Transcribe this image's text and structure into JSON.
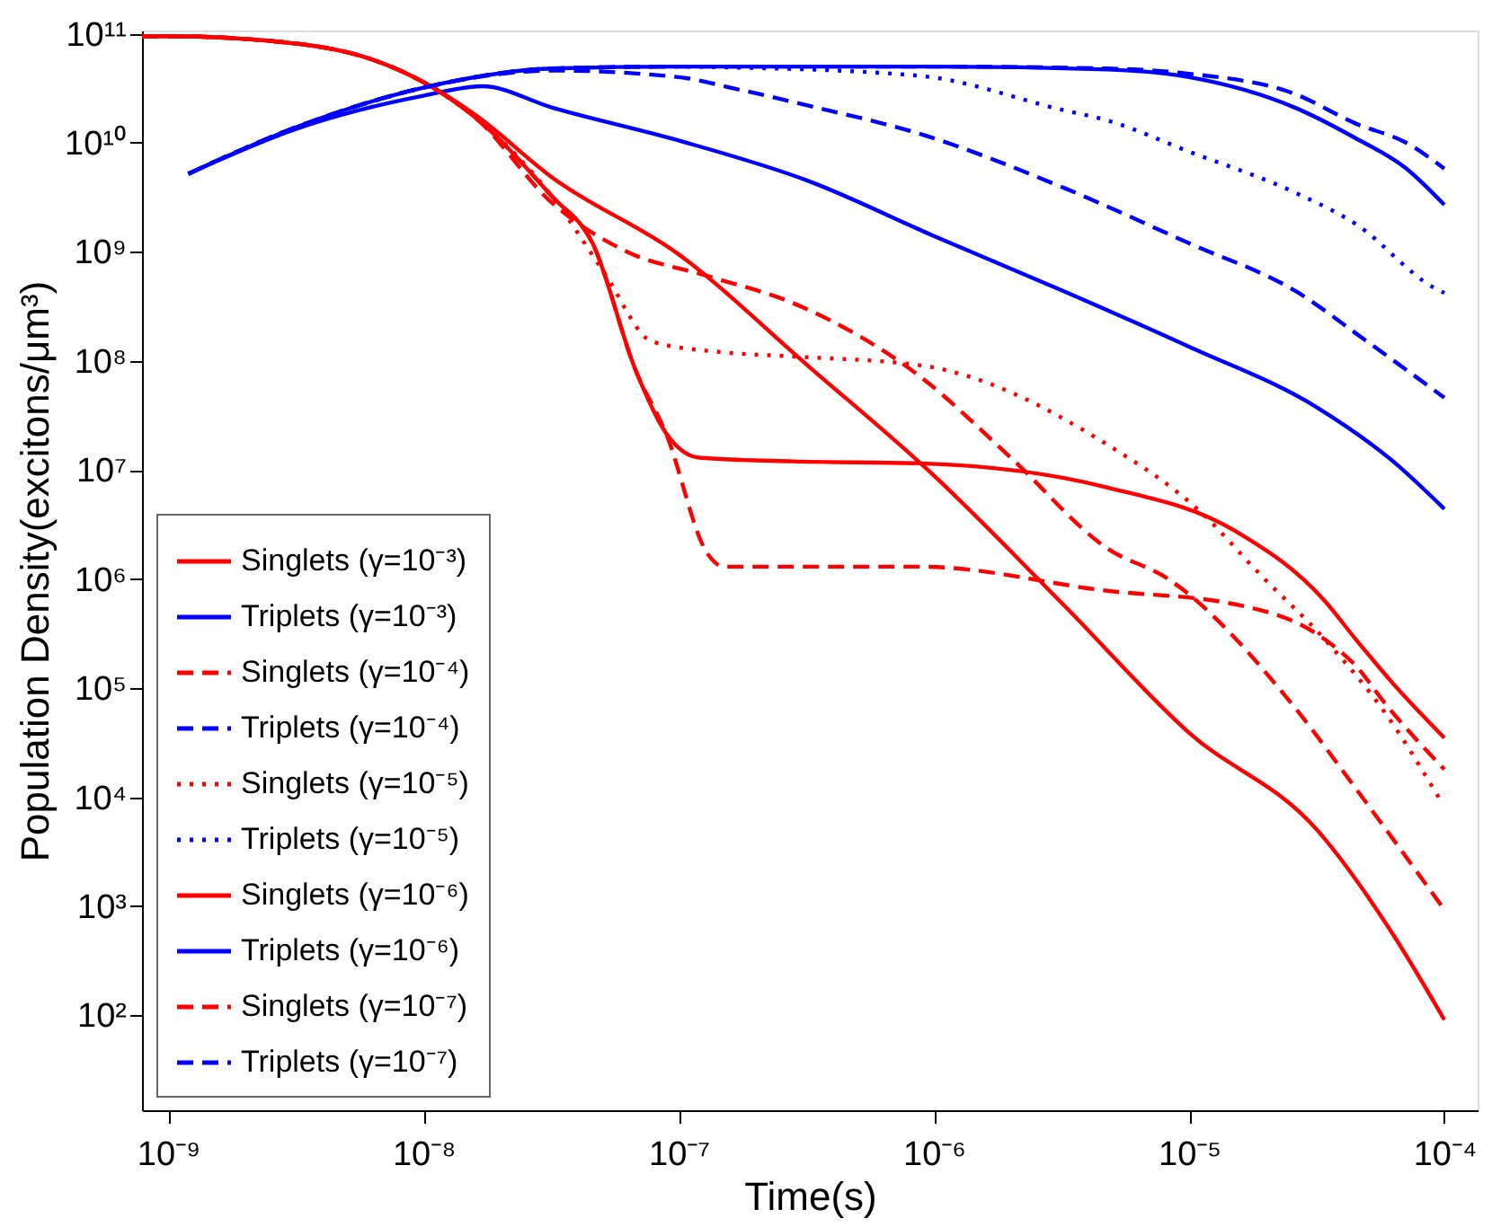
{
  "chart_data": {
    "type": "line",
    "xlabel": "Time(s)",
    "ylabel": "Population Density(excitons/μm³)",
    "log": "xy",
    "grid": false,
    "legend": "bottom left",
    "xlim": [
      7.9e-10,
      0.000135
    ],
    "ylim": [
      13.5,
      107000000000.0
    ],
    "xticks": [
      {
        "value": 1e-09,
        "label": "10⁻⁹"
      },
      {
        "value": 1e-08,
        "label": "10⁻⁸"
      },
      {
        "value": 1e-07,
        "label": "10⁻⁷"
      },
      {
        "value": 1e-06,
        "label": "10⁻⁶"
      },
      {
        "value": 1e-05,
        "label": "10⁻⁵"
      },
      {
        "value": 0.0001,
        "label": "10⁻⁴"
      }
    ],
    "yticks": [
      {
        "value": 100,
        "label": "10²"
      },
      {
        "value": 1000,
        "label": "10³"
      },
      {
        "value": 10000,
        "label": "10⁴"
      },
      {
        "value": 100000,
        "label": "10⁵"
      },
      {
        "value": 1000000,
        "label": "10⁶"
      },
      {
        "value": 10000000.0,
        "label": "10⁷"
      },
      {
        "value": 100000000.0,
        "label": "10⁸"
      },
      {
        "value": 1000000000.0,
        "label": "10⁹"
      },
      {
        "value": 10000000000.0,
        "label": "10¹⁰"
      },
      {
        "value": 100000000000.0,
        "label": "10¹¹"
      }
    ],
    "series": [
      {
        "name": "Singlets (γ=10⁻³)",
        "color": "#ff0000",
        "line_style": "solid",
        "x": [
          7.9e-10,
          1e-09,
          3.2e-09,
          6.3e-09,
          1e-08,
          1.6e-08,
          3.2e-08,
          1e-07,
          3.2e-07,
          1e-06,
          3.2e-06,
          1e-05,
          3.2e-05,
          6.3e-05,
          0.0001
        ],
        "values": [
          95000000000.0,
          95000000000.0,
          81000000000.0,
          58000000000.0,
          36000000000.0,
          18000000000.0,
          4800000000.0,
          950000000.0,
          91000000.0,
          8900000.0,
          590000.0,
          39000.0,
          4900,
          550,
          91
        ]
      },
      {
        "name": "Triplets (γ=10⁻³)",
        "color": "#0000ff",
        "line_style": "solid",
        "x": [
          1.2e-09,
          3.2e-09,
          1e-08,
          1.7e-08,
          3.2e-08,
          1e-07,
          3.2e-07,
          1e-06,
          3.2e-06,
          1e-05,
          3.2e-05,
          6.3e-05,
          0.0001
        ],
        "values": [
          5200000000.0,
          13500000000.0,
          27000000000.0,
          33000000000.0,
          21000000000.0,
          10500000000.0,
          4500000000.0,
          1400000000.0,
          440000000.0,
          135000000.0,
          37000000.0,
          12000000.0,
          4400000.0
        ]
      },
      {
        "name": "Singlets (γ=10⁻⁴)",
        "color": "#ff0000",
        "line_style": "dashed",
        "x": [
          7.9e-10,
          1e-09,
          3.2e-09,
          6.3e-09,
          1e-08,
          1.6e-08,
          3.2e-08,
          6.3e-08,
          1.3e-07,
          2.8e-07,
          8.9e-07,
          2e-06,
          4.8e-06,
          8.3e-06,
          2.6e-05,
          4.5e-05,
          0.0001
        ],
        "values": [
          95000000000.0,
          95000000000.0,
          81000000000.0,
          58000000000.0,
          36000000000.0,
          17000000000.0,
          2800000000.0,
          1000000000.0,
          600000000.0,
          340000000.0,
          71000000.0,
          13000000.0,
          1900000.0,
          1000000.0,
          66000.0,
          12000.0,
          930
        ]
      },
      {
        "name": "Triplets (γ=10⁻⁴)",
        "color": "#0000ff",
        "line_style": "dashed",
        "x": [
          1.2e-09,
          3.2e-09,
          1e-08,
          3.2e-08,
          1e-07,
          1.7e-07,
          3.2e-07,
          8.9e-07,
          3.2e-06,
          1e-05,
          2.6e-05,
          5e-05,
          0.0001
        ],
        "values": [
          5200000000.0,
          14000000000.0,
          32000000000.0,
          46000000000.0,
          40000000000.0,
          31000000000.0,
          22000000000.0,
          12000000000.0,
          3900000000.0,
          1200000000.0,
          440000000.0,
          150000000.0,
          46000000.0
        ]
      },
      {
        "name": "Singlets (γ=10⁻⁵)",
        "color": "#ff0000",
        "line_style": "dotted",
        "x": [
          7.9e-10,
          1e-09,
          3.2e-09,
          6.3e-09,
          1e-08,
          1.6e-08,
          3.2e-08,
          5.1e-08,
          7.9e-08,
          1.5e-07,
          2.8e-07,
          8.9e-07,
          4.8e-06,
          1.1e-05,
          1.9e-05,
          3.4e-05,
          5.9e-05,
          9.5e-05
        ],
        "values": [
          95000000000.0,
          95000000000.0,
          81000000000.0,
          58000000000.0,
          36000000000.0,
          17000000000.0,
          3200000000.0,
          650000000.0,
          150000000.0,
          120000000.0,
          110000000.0,
          91000000.0,
          17000000.0,
          4200000.0,
          1100000.0,
          280000.0,
          58000.0,
          10000.0
        ]
      },
      {
        "name": "Triplets (γ=10⁻⁵)",
        "color": "#0000ff",
        "line_style": "dotted",
        "x": [
          1.2e-09,
          3.2e-09,
          1e-08,
          3.2e-08,
          1e-07,
          1.7e-07,
          8.9e-07,
          3.2e-06,
          4.8e-06,
          1e-05,
          2.6e-05,
          4.5e-05,
          9.1e-05,
          0.0001
        ],
        "values": [
          5200000000.0,
          14000000000.0,
          32000000000.0,
          48000000000.0,
          50000000000.0,
          49000000000.0,
          41000000000.0,
          20000000000.0,
          16000000000.0,
          8300000000.0,
          3500000000.0,
          1800000000.0,
          470000000.0,
          420000000.0
        ]
      },
      {
        "name": "Singlets (γ=10⁻⁶)",
        "color": "#ff0000",
        "line_style": "solid",
        "x": [
          7.9e-10,
          1e-09,
          3.2e-09,
          6.3e-09,
          1e-08,
          1.6e-08,
          3.2e-08,
          4.6e-08,
          6.8e-08,
          8.9e-08,
          1.2e-07,
          2.8e-07,
          8.9e-07,
          4.8e-06,
          1.5e-05,
          3.4e-05,
          4.5e-05,
          6.3e-05,
          0.0001
        ],
        "values": [
          95000000000.0,
          95000000000.0,
          81000000000.0,
          58000000000.0,
          36000000000.0,
          17000000000.0,
          3200000000.0,
          1200000000.0,
          81000000.0,
          22000000.0,
          13000000.0,
          12000000.0,
          11500000.0,
          6900000.0,
          2800000.0,
          630000.0,
          280000.0,
          110000.0,
          35000.0
        ]
      },
      {
        "name": "Triplets (γ=10⁻⁶)",
        "color": "#0000ff",
        "line_style": "solid",
        "x": [
          1.2e-09,
          3.2e-09,
          1e-08,
          3.2e-08,
          1e-07,
          1e-06,
          4.8e-06,
          1e-05,
          2.6e-05,
          4.5e-05,
          7.1e-05,
          0.0001
        ],
        "values": [
          5200000000.0,
          14000000000.0,
          32000000000.0,
          48000000000.0,
          50000000000.0,
          50000000000.0,
          47000000000.0,
          40000000000.0,
          21000000000.0,
          11000000000.0,
          5800000000.0,
          2700000000.0
        ]
      },
      {
        "name": "Singlets (γ=10⁻⁷)",
        "color": "#ff0000",
        "line_style": "dashed",
        "x": [
          7.9e-10,
          1e-09,
          3.2e-09,
          6.3e-09,
          1e-08,
          1.6e-08,
          3.2e-08,
          4.6e-08,
          6.8e-08,
          8.9e-08,
          1.3e-07,
          1.5e-07,
          2.8e-07,
          8.9e-07,
          4.8e-06,
          1.5e-05,
          3.4e-05,
          4.5e-05,
          5.9e-05,
          0.0001
        ],
        "values": [
          95000000000.0,
          95000000000.0,
          81000000000.0,
          58000000000.0,
          36000000000.0,
          17000000000.0,
          3200000000.0,
          1200000000.0,
          81000000.0,
          22000000.0,
          1700000.0,
          1300000.0,
          1300000.0,
          1300000.0,
          780000.0,
          590000.0,
          280000.0,
          160000.0,
          71000.0,
          18000.0
        ]
      },
      {
        "name": "Triplets (γ=10⁻⁷)",
        "color": "#0000ff",
        "line_style": "dashed",
        "x": [
          1.2e-09,
          3.2e-09,
          1e-08,
          3.2e-08,
          1e-07,
          1e-06,
          4.8e-06,
          1e-05,
          2.6e-05,
          4.5e-05,
          7.1e-05,
          0.0001
        ],
        "values": [
          5200000000.0,
          14000000000.0,
          32000000000.0,
          48000000000.0,
          50000000000.0,
          50000000000.0,
          48000000000.0,
          43000000000.0,
          28000000000.0,
          15000000000.0,
          10000000000.0,
          5800000000.0
        ]
      }
    ]
  }
}
